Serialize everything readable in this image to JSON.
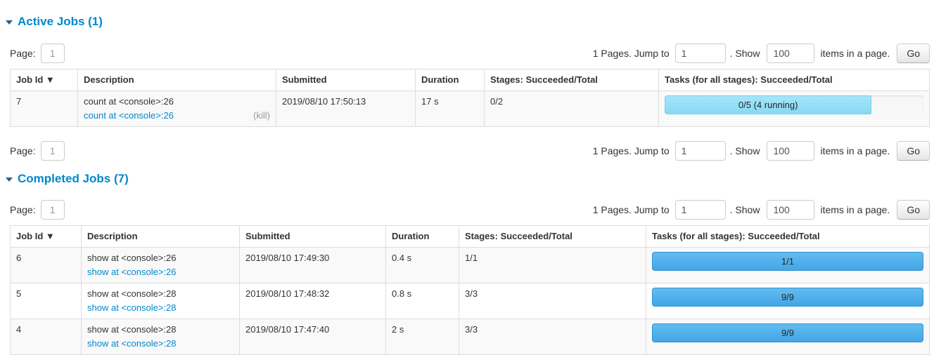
{
  "pagination": {
    "page_label": "Page:",
    "page_value": "1",
    "pages_text": "1 Pages. Jump to",
    "jump_value": "1",
    "show_label": ". Show",
    "show_value": "100",
    "suffix_text": "items in a page.",
    "go_label": "Go"
  },
  "columns": [
    "Job Id ▼",
    "Description",
    "Submitted",
    "Duration",
    "Stages: Succeeded/Total",
    "Tasks (for all stages): Succeeded/Total"
  ],
  "active_jobs": {
    "title": "Active Jobs (1)",
    "rows": [
      {
        "job_id": "7",
        "description": "count at <console>:26",
        "description_link": "count at <console>:26",
        "kill_label": "(kill)",
        "submitted": "2019/08/10 17:50:13",
        "duration": "17 s",
        "stages": "0/2",
        "tasks_label": "0/5 (4 running)",
        "tasks_percent": 80,
        "tasks_state": "running"
      }
    ]
  },
  "completed_jobs": {
    "title": "Completed Jobs (7)",
    "rows": [
      {
        "job_id": "6",
        "description": "show at <console>:26",
        "description_link": "show at <console>:26",
        "submitted": "2019/08/10 17:49:30",
        "duration": "0.4 s",
        "stages": "1/1",
        "tasks_label": "1/1",
        "tasks_percent": 100,
        "tasks_state": "completed"
      },
      {
        "job_id": "5",
        "description": "show at <console>:28",
        "description_link": "show at <console>:28",
        "submitted": "2019/08/10 17:48:32",
        "duration": "0.8 s",
        "stages": "3/3",
        "tasks_label": "9/9",
        "tasks_percent": 100,
        "tasks_state": "completed"
      },
      {
        "job_id": "4",
        "description": "show at <console>:28",
        "description_link": "show at <console>:28",
        "submitted": "2019/08/10 17:47:40",
        "duration": "2 s",
        "stages": "3/3",
        "tasks_label": "9/9",
        "tasks_percent": 100,
        "tasks_state": "completed"
      }
    ]
  },
  "colors": {
    "accent_blue": "#0088cc",
    "bar_completed": "#42a6e6",
    "bar_running": "#8edcf5",
    "stripe": "#f9f9f9",
    "border": "#dddddd"
  }
}
